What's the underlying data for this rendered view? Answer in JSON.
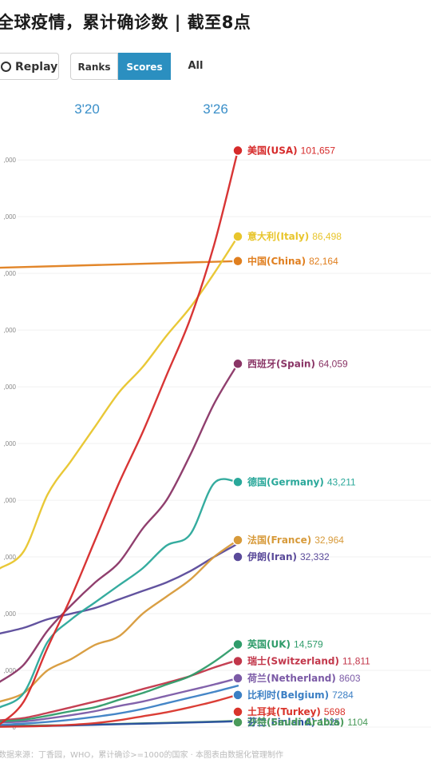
{
  "page_title": "全球疫情，累计确诊数 | 截至8点",
  "controls": {
    "replay_label": "Replay",
    "ranks_label": "Ranks",
    "scores_label": "Scores",
    "all_label": "All"
  },
  "footer": "数据来源：丁香园，WHO，累计确诊>=1000的国家 · 本图表由数据化管理制作",
  "chart_data": {
    "type": "line",
    "title": "全球疫情，累计确诊数 | 截至8点",
    "x_ticks": [
      "3'20",
      "3'26"
    ],
    "x_range": [
      0,
      10
    ],
    "ylim": [
      0,
      102000
    ],
    "y_ticks": [
      0,
      10000,
      20000,
      30000,
      40000,
      50000,
      60000,
      70000,
      80000,
      90000,
      100000
    ],
    "y_tick_labels": [
      "0",
      ",000",
      ",000",
      ",000",
      ",000",
      ",000",
      ",000",
      ",000",
      ",000",
      ",000",
      ",000"
    ],
    "series": [
      {
        "name": "美国(USA)",
        "value_label": "101,657",
        "color": "#d62a2a",
        "x": [
          0,
          1,
          2,
          3,
          4,
          5,
          6,
          7,
          8,
          9,
          10
        ],
        "y": [
          500,
          4500,
          14000,
          23000,
          33000,
          43000,
          52000,
          62000,
          72000,
          85000,
          101657
        ]
      },
      {
        "name": "意大利(Italy)",
        "value_label": "86,498",
        "color": "#e8c52c",
        "x": [
          0,
          1,
          2,
          3,
          4,
          5,
          6,
          7,
          8,
          9,
          10
        ],
        "y": [
          28000,
          31000,
          41000,
          47000,
          53000,
          59000,
          63500,
          69000,
          74000,
          80000,
          86498
        ]
      },
      {
        "name": "中国(China)",
        "value_label": "82,164",
        "color": "#e07f1f",
        "x": [
          0,
          10
        ],
        "y": [
          81000,
          82164
        ]
      },
      {
        "name": "西班牙(Spain)",
        "value_label": "64,059",
        "color": "#8a3566",
        "x": [
          0,
          1,
          2,
          3,
          4,
          5,
          6,
          7,
          8,
          9,
          10
        ],
        "y": [
          8000,
          11000,
          17000,
          21500,
          25500,
          29000,
          35000,
          40000,
          48000,
          57000,
          64059
        ]
      },
      {
        "name": "德国(Germany)",
        "value_label": "43,211",
        "color": "#2aa89a",
        "x": [
          0,
          1,
          2,
          3,
          4,
          5,
          6,
          7,
          8,
          9,
          10
        ],
        "y": [
          3500,
          6000,
          15000,
          19000,
          22000,
          25000,
          28000,
          32000,
          34000,
          43000,
          43211
        ]
      },
      {
        "name": "法国(France)",
        "value_label": "32,964",
        "color": "#d79a3a",
        "x": [
          0,
          1,
          2,
          3,
          4,
          5,
          6,
          7,
          8,
          9,
          10
        ],
        "y": [
          4500,
          6000,
          10000,
          12000,
          14500,
          16000,
          20000,
          23000,
          26000,
          30000,
          32964
        ]
      },
      {
        "name": "伊朗(Iran)",
        "value_label": "32,332",
        "color": "#5a4a9a",
        "x": [
          0,
          1,
          2,
          3,
          4,
          5,
          6,
          7,
          8,
          9,
          10
        ],
        "y": [
          16500,
          17500,
          19000,
          20000,
          21000,
          22500,
          24000,
          25500,
          27500,
          30000,
          32332
        ]
      },
      {
        "name": "英国(UK)",
        "value_label": "14,579",
        "color": "#2f9c6a",
        "x": [
          0,
          1,
          2,
          3,
          4,
          5,
          6,
          7,
          8,
          9,
          10
        ],
        "y": [
          1000,
          1300,
          2000,
          2800,
          3500,
          4800,
          6000,
          7500,
          9000,
          11500,
          14579
        ]
      },
      {
        "name": "瑞士(Switzerland)",
        "value_label": "11,811",
        "color": "#c2364a",
        "x": [
          0,
          1,
          2,
          3,
          4,
          5,
          6,
          7,
          8,
          9,
          10
        ],
        "y": [
          1200,
          1600,
          2500,
          3500,
          4500,
          5500,
          6700,
          7800,
          9000,
          10500,
          11811
        ]
      },
      {
        "name": "荷兰(Netherland)",
        "value_label": "8603",
        "color": "#7b5aa6",
        "x": [
          0,
          1,
          2,
          3,
          4,
          5,
          6,
          7,
          8,
          9,
          10
        ],
        "y": [
          800,
          1000,
          1500,
          2100,
          2800,
          3700,
          4500,
          5500,
          6500,
          7500,
          8603
        ]
      },
      {
        "name": "比利时(Belgium)",
        "value_label": "7284",
        "color": "#3b7fc4",
        "x": [
          0,
          1,
          2,
          3,
          4,
          5,
          6,
          7,
          8,
          9,
          10
        ],
        "y": [
          400,
          600,
          900,
          1300,
          1800,
          2400,
          3200,
          4200,
          5200,
          6200,
          7284
        ]
      },
      {
        "name": "土耳其(Turkey)",
        "value_label": "5698",
        "color": "#d9342b",
        "x": [
          0,
          1,
          2,
          3,
          4,
          5,
          6,
          7,
          8,
          9,
          10
        ],
        "y": [
          50,
          100,
          200,
          400,
          700,
          1200,
          1900,
          2600,
          3500,
          4500,
          5698
        ]
      },
      {
        "name": "芬兰(Finland)",
        "value_label": "1025",
        "color": "#2a4fa0",
        "x": [
          0,
          1,
          2,
          3,
          4,
          5,
          6,
          7,
          8,
          9,
          10
        ],
        "y": [
          100,
          150,
          200,
          300,
          400,
          500,
          600,
          700,
          800,
          900,
          1025
        ]
      },
      {
        "name": "沙特(Saudi Arabia)",
        "value_label": "1104",
        "color": "#4a9a5a",
        "x": [
          0,
          1,
          2,
          3,
          4,
          5,
          6,
          7,
          8,
          9,
          10
        ],
        "y": [
          200,
          250,
          300,
          350,
          450,
          550,
          650,
          750,
          850,
          950,
          1104
        ]
      }
    ]
  }
}
